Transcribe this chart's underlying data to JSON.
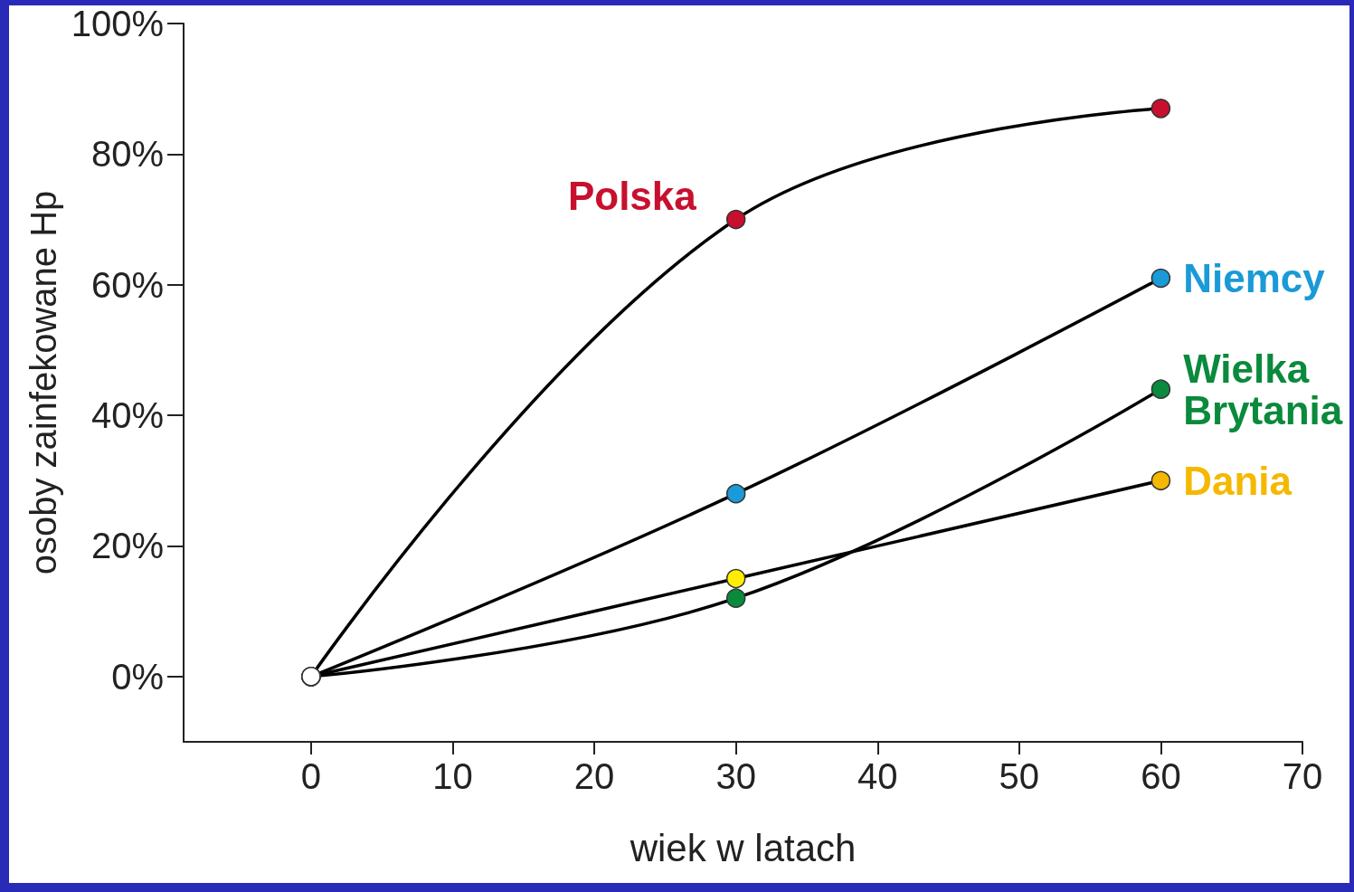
{
  "chart_data": {
    "type": "line",
    "xlabel": "wiek w latach",
    "ylabel": "osoby zainfekowane Hp",
    "x": [
      0,
      30,
      60
    ],
    "series": [
      {
        "name": "Polska",
        "color": "#000000",
        "colors": [
          "#ffffff",
          "#c8102e",
          "#c8102e"
        ],
        "values": [
          0,
          70,
          87
        ]
      },
      {
        "name": "Niemcy",
        "color": "#000000",
        "colors": [
          "#ffffff",
          "#1a9ad6",
          "#1a9ad6"
        ],
        "values": [
          0,
          28,
          61
        ]
      },
      {
        "name": "Wielka\nBrytania",
        "color": "#000000",
        "colors": [
          "#ffffff",
          "#0a8a3c",
          "#0a8a3c"
        ],
        "values": [
          0,
          12,
          44
        ]
      },
      {
        "name": "Dania",
        "color": "#000000",
        "colors": [
          "#ffffff",
          "#ffee00",
          "#f5b800"
        ],
        "values": [
          0,
          15,
          30
        ]
      }
    ],
    "xlim": [
      -9,
      70
    ],
    "xticks": [
      0,
      10,
      20,
      30,
      40,
      50,
      60,
      70
    ],
    "ylim": [
      -10,
      100
    ],
    "yticks": [
      {
        "value": 0,
        "label": "0%"
      },
      {
        "value": 20,
        "label": "20%"
      },
      {
        "value": 40,
        "label": "40%"
      },
      {
        "value": 60,
        "label": "60%"
      },
      {
        "value": 80,
        "label": "80%"
      },
      {
        "value": 100,
        "label": "100%"
      }
    ],
    "grid": false,
    "legend": false,
    "marker": "circle",
    "line_style": "solid"
  }
}
